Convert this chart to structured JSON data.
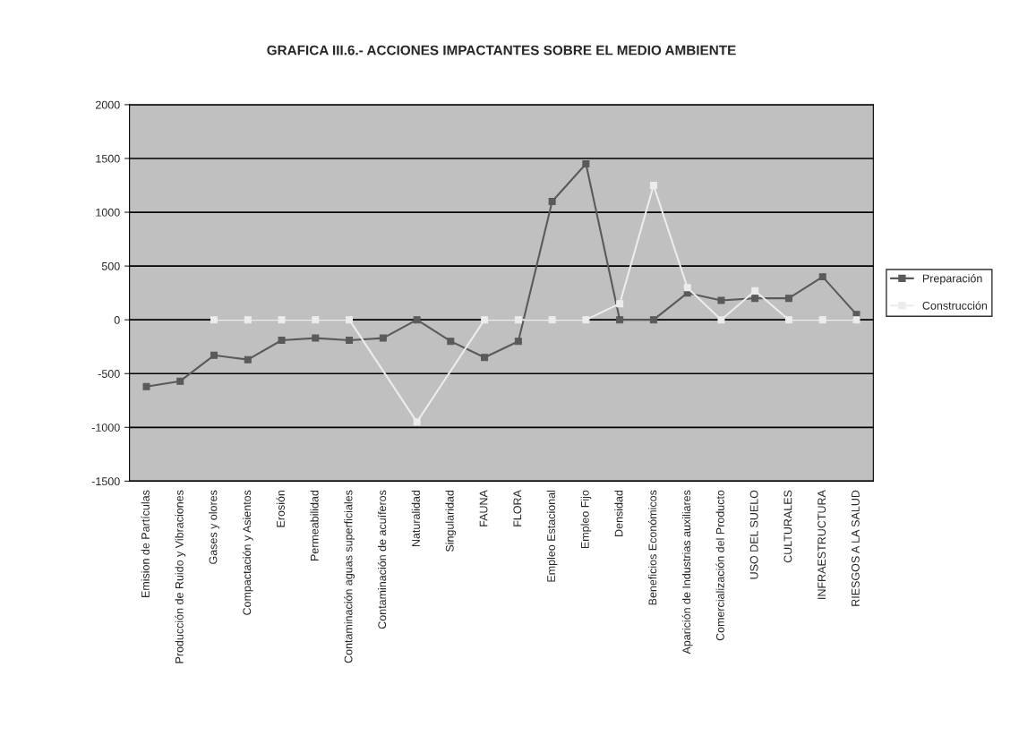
{
  "chart_data": {
    "type": "line",
    "title": "GRAFICA III.6.- ACCIONES IMPACTANTES SOBRE EL MEDIO AMBIENTE",
    "categories": [
      "Emision de Partículas",
      "Producción de Ruido y Vibraciones",
      "Gases y olores",
      "Compactación y Asientos",
      "Erosión",
      "Permeabilidad",
      "Contaminación aguas superficiales",
      "Contaminación de acuíferos",
      "Naturalidad",
      "Singularidad",
      "FAUNA",
      "FLORA",
      "Empleo Estacional",
      "Empleo Fijo",
      "Densidad",
      "Beneficios Económicos",
      "Aparición de Industrias auxiliares",
      "Comercialización del Producto",
      "USO DEL SUELO",
      "CULTURALES",
      "INFRAESTRUCTURA",
      "RIESGOS A LA SALUD"
    ],
    "series": [
      {
        "name": "Preparación",
        "color": "#5a5a5a",
        "values": [
          -620,
          -570,
          -330,
          -370,
          -190,
          -170,
          -190,
          -170,
          0,
          -200,
          -350,
          -200,
          1100,
          1450,
          0,
          0,
          250,
          180,
          200,
          200,
          400,
          50
        ]
      },
      {
        "name": "Construcción",
        "color": "#ececec",
        "values": [
          null,
          null,
          0,
          0,
          0,
          0,
          0,
          null,
          -950,
          null,
          0,
          0,
          0,
          0,
          150,
          1250,
          300,
          0,
          270,
          0,
          0,
          0
        ]
      }
    ],
    "ylim": [
      -1500,
      2000
    ],
    "yticks": [
      -1500,
      -1000,
      -500,
      0,
      500,
      1000,
      1500,
      2000
    ],
    "grid": "y",
    "legend": "right",
    "marker": "square",
    "line_style": "solid"
  }
}
